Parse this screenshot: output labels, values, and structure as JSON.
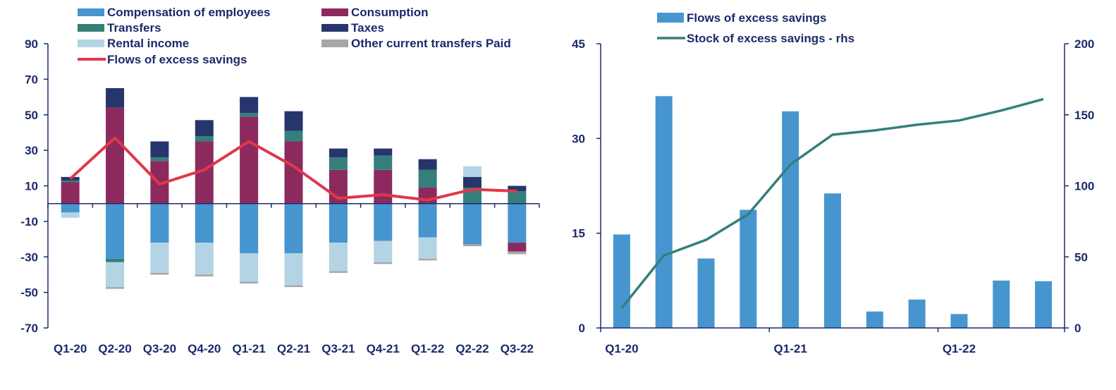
{
  "chart_data": [
    {
      "type": "bar",
      "stacked": true,
      "categories": [
        "Q1-20",
        "Q2-20",
        "Q3-20",
        "Q4-20",
        "Q1-21",
        "Q2-21",
        "Q3-21",
        "Q4-21",
        "Q1-22",
        "Q2-22",
        "Q3-22"
      ],
      "ylim": [
        -70,
        90
      ],
      "yticks": [
        -70,
        -50,
        -30,
        -10,
        10,
        30,
        50,
        70,
        90
      ],
      "legend_position": "top",
      "series": [
        {
          "name": "Compensation of employees",
          "kind": "bar",
          "color": "#4795cf",
          "values": [
            -5,
            -31,
            -22,
            -22,
            -28,
            -28,
            -22,
            -21,
            -19,
            -23,
            -22
          ]
        },
        {
          "name": "Consumption",
          "kind": "bar",
          "color": "#8c2a5e",
          "values": [
            12,
            54,
            24,
            35,
            49,
            35,
            19,
            19,
            9,
            0,
            -5
          ]
        },
        {
          "name": "Transfers",
          "kind": "bar",
          "color": "#357f7a",
          "values": [
            1,
            -2,
            2,
            3,
            2,
            6,
            7,
            8,
            10,
            9,
            7
          ]
        },
        {
          "name": "Taxes",
          "kind": "bar",
          "color": "#27356d",
          "values": [
            2,
            11,
            9,
            9,
            9,
            11,
            5,
            4,
            6,
            6,
            3
          ]
        },
        {
          "name": "Rental income",
          "kind": "bar",
          "color": "#b3d4e4",
          "values": [
            -3,
            -14,
            -17,
            -18,
            -16,
            -18,
            -16,
            -12,
            -12,
            6,
            0
          ]
        },
        {
          "name": "Other current transfers Paid",
          "kind": "bar",
          "color": "#a7a7a7",
          "values": [
            0,
            -1,
            -1,
            -1,
            -1,
            -1,
            -1,
            -1,
            -1,
            -1,
            -1.5
          ]
        },
        {
          "name": "Flows of excess savings",
          "kind": "line",
          "color": "#e0374b",
          "values": [
            14,
            37,
            11,
            19,
            35,
            21,
            3,
            5,
            2,
            8,
            7
          ]
        }
      ]
    },
    {
      "type": "bar+line",
      "categories": [
        "Q1-20",
        "Q2-20",
        "Q3-20",
        "Q4-20",
        "Q1-21",
        "Q2-21",
        "Q3-21",
        "Q4-21",
        "Q1-22",
        "Q2-22",
        "Q3-22"
      ],
      "xtick_labels": [
        "Q1-20",
        "",
        "",
        "",
        "Q1-21",
        "",
        "",
        "",
        "Q1-22",
        "",
        ""
      ],
      "ylim": [
        0,
        45
      ],
      "yticks": [
        0,
        15,
        30,
        45
      ],
      "y2lim": [
        0,
        200
      ],
      "y2ticks": [
        0,
        50,
        100,
        150,
        200
      ],
      "legend_position": "top",
      "series": [
        {
          "name": "Flows of excess savings",
          "kind": "bar",
          "axis": "left",
          "color": "#4795cf",
          "values": [
            14.8,
            36.7,
            11.0,
            18.7,
            34.3,
            21.3,
            2.6,
            4.5,
            2.2,
            7.5,
            7.4
          ]
        },
        {
          "name": "Stock of excess savings - rhs",
          "kind": "line",
          "axis": "right",
          "color": "#357f7a",
          "values": [
            14,
            51,
            62,
            80,
            115,
            136,
            139,
            143,
            146,
            153,
            161
          ]
        }
      ]
    }
  ]
}
